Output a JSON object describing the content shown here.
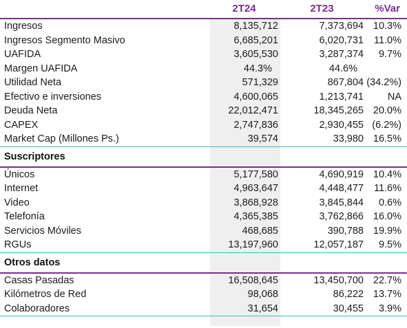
{
  "header": {
    "col1": "2T24",
    "col2": "2T23",
    "col3": "%Var"
  },
  "group_main": [
    {
      "label": "Ingresos",
      "v1": "8,135,712",
      "v2": "7,373,694",
      "v3": "10.3%"
    },
    {
      "label": "Ingresos Segmento Masivo",
      "v1": "6,685,201",
      "v2": "6,020,731",
      "v3": "11.0%"
    },
    {
      "label": "UAFIDA",
      "v1": "3,605,530",
      "v2": "3,287,374",
      "v3": "9.7%"
    },
    {
      "label": "Margen UAFIDA",
      "v1": "44.3%",
      "v2": "44.6%",
      "v3": ""
    },
    {
      "label": "Utilidad Neta",
      "v1": "571,329",
      "v2": "867,804",
      "v3": "(34.2%)"
    },
    {
      "label": "Efectivo e inversiones",
      "v1": "4,600,065",
      "v2": "1,213,741",
      "v3": "NA"
    },
    {
      "label": "Deuda Neta",
      "v1": "22,012,471",
      "v2": "18,345,265",
      "v3": "20.0%"
    },
    {
      "label": "CAPEX",
      "v1": "2,747,836",
      "v2": "2,930,455",
      "v3": "(6.2%)"
    },
    {
      "label": "Market Cap (Millones Ps.)",
      "v1": "39,574",
      "v2": "33,980",
      "v3": "16.5%"
    }
  ],
  "section_subs": {
    "title": "Suscriptores"
  },
  "group_subs": [
    {
      "label": "Únicos",
      "v1": "5,177,580",
      "v2": "4,690,919",
      "v3": "10.4%"
    },
    {
      "label": "Internet",
      "v1": "4,963,647",
      "v2": "4,448,477",
      "v3": "11.6%"
    },
    {
      "label": "Video",
      "v1": "3,868,928",
      "v2": "3,845,844",
      "v3": "0.6%"
    },
    {
      "label": "Telefonía",
      "v1": "4,365,385",
      "v2": "3,762,866",
      "v3": "16.0%"
    },
    {
      "label": "Servicios Móviles",
      "v1": "468,685",
      "v2": "390,788",
      "v3": "19.9%"
    },
    {
      "label": "RGUs",
      "v1": "13,197,960",
      "v2": "12,057,187",
      "v3": "9.5%"
    }
  ],
  "section_other": {
    "title": "Otros datos"
  },
  "group_other": [
    {
      "label": "Casas Pasadas",
      "v1": "16,508,645",
      "v2": "13,450,700",
      "v3": "22.7%"
    },
    {
      "label": "Kilómetros de Red",
      "v1": "98,068",
      "v2": "86,222",
      "v3": "13.7%"
    },
    {
      "label": "Colaboradores",
      "v1": "31,654",
      "v2": "30,455",
      "v3": "3.9%"
    }
  ]
}
